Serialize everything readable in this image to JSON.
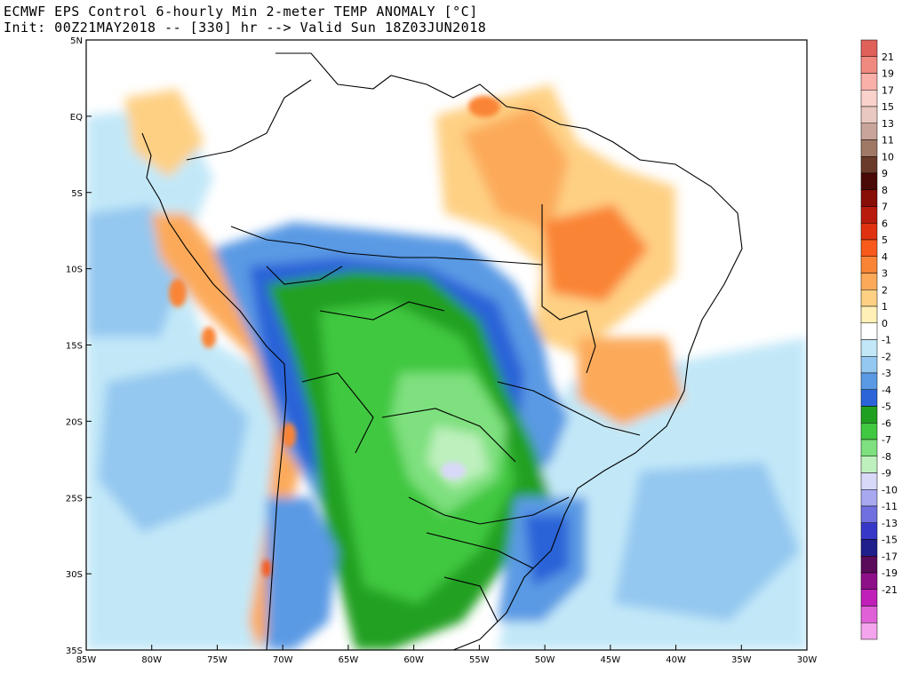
{
  "header": {
    "title_line1": "ECMWF EPS Control 6-hourly Min 2-meter TEMP ANOMALY [°C]",
    "title_line2": "Init: 00Z21MAY2018 -- [330] hr --> Valid Sun 18Z03JUN2018"
  },
  "map": {
    "lon_labels": [
      "85W",
      "80W",
      "75W",
      "70W",
      "65W",
      "60W",
      "55W",
      "50W",
      "45W",
      "40W",
      "35W",
      "30W"
    ],
    "lat_labels": [
      "5N",
      "EQ",
      "5S",
      "10S",
      "15S",
      "20S",
      "25S",
      "30S",
      "35S"
    ],
    "lon_range": [
      -85,
      -30
    ],
    "lat_range": [
      -35,
      5
    ]
  },
  "colorbar": {
    "entries": [
      {
        "label": "21",
        "color": "#e0605a"
      },
      {
        "label": "19",
        "color": "#f08a80"
      },
      {
        "label": "17",
        "color": "#f8b0a8"
      },
      {
        "label": "15",
        "color": "#fad2cc"
      },
      {
        "label": "13",
        "color": "#e8c8c0"
      },
      {
        "label": "11",
        "color": "#c8a49a"
      },
      {
        "label": "10",
        "color": "#a07866"
      },
      {
        "label": "9",
        "color": "#6a3a2a"
      },
      {
        "label": "8",
        "color": "#4a0a08"
      },
      {
        "label": "7",
        "color": "#880e08"
      },
      {
        "label": "6",
        "color": "#b81a0c"
      },
      {
        "label": "5",
        "color": "#e03210"
      },
      {
        "label": "4",
        "color": "#f85a1c"
      },
      {
        "label": "3",
        "color": "#fa8436"
      },
      {
        "label": "2",
        "color": "#fcaa5a"
      },
      {
        "label": "1",
        "color": "#fed084"
      },
      {
        "label": "0",
        "color": "#fff0b8"
      },
      {
        "label": "-1",
        "color": "#ffffff"
      },
      {
        "label": "-2",
        "color": "#c2e8f8"
      },
      {
        "label": "-3",
        "color": "#94c8f0"
      },
      {
        "label": "-4",
        "color": "#5a9ae4"
      },
      {
        "label": "-5",
        "color": "#2a64d8"
      },
      {
        "label": "-6",
        "color": "#20a020"
      },
      {
        "label": "-7",
        "color": "#40c840"
      },
      {
        "label": "-8",
        "color": "#7ee07e"
      },
      {
        "label": "-9",
        "color": "#bdf0bd"
      },
      {
        "label": "-10",
        "color": "#d8d8f8"
      },
      {
        "label": "-11",
        "color": "#a8a8f0"
      },
      {
        "label": "-13",
        "color": "#7070e0"
      },
      {
        "label": "-15",
        "color": "#3838c8"
      },
      {
        "label": "-17",
        "color": "#20208c"
      },
      {
        "label": "-19",
        "color": "#5a0c5a"
      },
      {
        "label": "-21",
        "color": "#8e1088"
      },
      {
        "label": "",
        "color": "#c020b8"
      },
      {
        "label": "",
        "color": "#e060d8"
      },
      {
        "label": "",
        "color": "#f4a4ec"
      }
    ]
  }
}
